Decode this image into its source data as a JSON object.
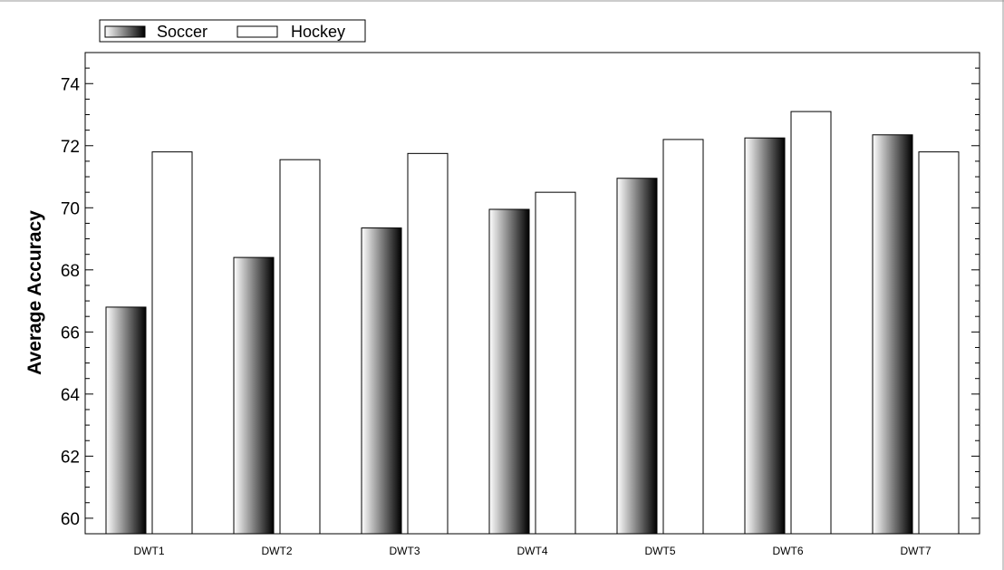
{
  "chart_data": {
    "type": "bar",
    "title": "",
    "xlabel": "",
    "ylabel": "Average Accuracy",
    "ylim": [
      59.5,
      75
    ],
    "yticks": [
      60,
      62,
      64,
      66,
      68,
      70,
      72,
      74
    ],
    "ytick_labels": [
      "60",
      "62",
      "64",
      "66",
      "68",
      "70",
      "72",
      "74"
    ],
    "categories": [
      "DWT1",
      "DWT2",
      "DWT3",
      "DWT4",
      "DWT5",
      "DWT6",
      "DWT7"
    ],
    "series": [
      {
        "name": "Soccer",
        "values": [
          66.8,
          68.4,
          69.35,
          69.95,
          70.95,
          72.25,
          72.35
        ],
        "fill": "gradient-white-to-black"
      },
      {
        "name": "Hockey",
        "values": [
          71.8,
          71.55,
          71.75,
          70.5,
          72.2,
          73.1,
          71.8
        ],
        "fill": "#ffffff"
      }
    ],
    "legend": {
      "position": "top-left",
      "items": [
        "Soccer",
        "Hockey"
      ]
    },
    "grid": false
  },
  "colors": {
    "bar_stroke": "#000000",
    "axis": "#000000",
    "hockey_fill": "#ffffff",
    "gradient_start": "#ffffff",
    "gradient_end": "#000000"
  }
}
